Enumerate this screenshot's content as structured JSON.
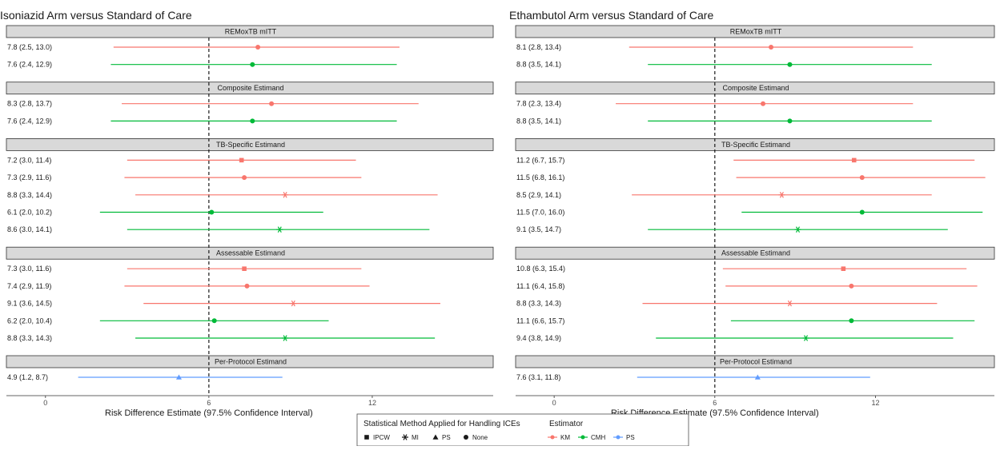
{
  "chart_data": {
    "type": "forest",
    "xlabel": "Risk Difference Estimate (97.5% Confidence Interval)",
    "x_ticks": [
      0,
      6,
      12
    ],
    "reference_line": 6,
    "colors": {
      "KM": "#f8766d",
      "CMH": "#00ba38",
      "PS": "#619cff"
    },
    "legend": {
      "placement": "bottom",
      "method_title": "Statistical Method Applied for Handling ICEs",
      "methods": [
        {
          "name": "IPCW",
          "shape": "square"
        },
        {
          "name": "MI",
          "shape": "asterisk"
        },
        {
          "name": "PS",
          "shape": "triangle"
        },
        {
          "name": "None",
          "shape": "circle"
        }
      ],
      "estimator_title": "Estimator",
      "estimators": [
        "KM",
        "CMH",
        "PS"
      ]
    },
    "panels": [
      {
        "title": "Isoniazid Arm versus Standard of Care",
        "xlim": [
          -1.2,
          16.5
        ],
        "groups": [
          {
            "label": "REMoxTB mITT",
            "rows": [
              {
                "text": "7.8 (2.5, 13.0)",
                "est": 7.8,
                "lo": 2.5,
                "hi": 13.0,
                "estimator": "KM",
                "method": "None"
              },
              {
                "text": "7.6 (2.4, 12.9)",
                "est": 7.6,
                "lo": 2.4,
                "hi": 12.9,
                "estimator": "CMH",
                "method": "None"
              }
            ]
          },
          {
            "label": "Composite Estimand",
            "rows": [
              {
                "text": "8.3 (2.8, 13.7)",
                "est": 8.3,
                "lo": 2.8,
                "hi": 13.7,
                "estimator": "KM",
                "method": "None"
              },
              {
                "text": "7.6 (2.4, 12.9)",
                "est": 7.6,
                "lo": 2.4,
                "hi": 12.9,
                "estimator": "CMH",
                "method": "None"
              }
            ]
          },
          {
            "label": "TB-Specific Estimand",
            "rows": [
              {
                "text": "7.2 (3.0, 11.4)",
                "est": 7.2,
                "lo": 3.0,
                "hi": 11.4,
                "estimator": "KM",
                "method": "IPCW"
              },
              {
                "text": "7.3 (2.9, 11.6)",
                "est": 7.3,
                "lo": 2.9,
                "hi": 11.6,
                "estimator": "KM",
                "method": "None"
              },
              {
                "text": "8.8 (3.3, 14.4)",
                "est": 8.8,
                "lo": 3.3,
                "hi": 14.4,
                "estimator": "KM",
                "method": "MI"
              },
              {
                "text": "6.1 (2.0, 10.2)",
                "est": 6.1,
                "lo": 2.0,
                "hi": 10.2,
                "estimator": "CMH",
                "method": "None"
              },
              {
                "text": "8.6 (3.0, 14.1)",
                "est": 8.6,
                "lo": 3.0,
                "hi": 14.1,
                "estimator": "CMH",
                "method": "MI"
              }
            ]
          },
          {
            "label": "Assessable Estimand",
            "rows": [
              {
                "text": "7.3 (3.0, 11.6)",
                "est": 7.3,
                "lo": 3.0,
                "hi": 11.6,
                "estimator": "KM",
                "method": "IPCW"
              },
              {
                "text": "7.4 (2.9, 11.9)",
                "est": 7.4,
                "lo": 2.9,
                "hi": 11.9,
                "estimator": "KM",
                "method": "None"
              },
              {
                "text": "9.1 (3.6, 14.5)",
                "est": 9.1,
                "lo": 3.6,
                "hi": 14.5,
                "estimator": "KM",
                "method": "MI"
              },
              {
                "text": "6.2 (2.0, 10.4)",
                "est": 6.2,
                "lo": 2.0,
                "hi": 10.4,
                "estimator": "CMH",
                "method": "None"
              },
              {
                "text": "8.8 (3.3, 14.3)",
                "est": 8.8,
                "lo": 3.3,
                "hi": 14.3,
                "estimator": "CMH",
                "method": "MI"
              }
            ]
          },
          {
            "label": "Per-Protocol Estimand",
            "rows": [
              {
                "text": "4.9 (1.2, 8.7)",
                "est": 4.9,
                "lo": 1.2,
                "hi": 8.7,
                "estimator": "PS",
                "method": "PS"
              }
            ]
          }
        ]
      },
      {
        "title": "Ethambutol Arm versus Standard of Care",
        "xlim": [
          -1.2,
          16.5
        ],
        "groups": [
          {
            "label": "REMoxTB mITT",
            "rows": [
              {
                "text": "8.1 (2.8, 13.4)",
                "est": 8.1,
                "lo": 2.8,
                "hi": 13.4,
                "estimator": "KM",
                "method": "None"
              },
              {
                "text": "8.8 (3.5, 14.1)",
                "est": 8.8,
                "lo": 3.5,
                "hi": 14.1,
                "estimator": "CMH",
                "method": "None"
              }
            ]
          },
          {
            "label": "Composite Estimand",
            "rows": [
              {
                "text": "7.8 (2.3, 13.4)",
                "est": 7.8,
                "lo": 2.3,
                "hi": 13.4,
                "estimator": "KM",
                "method": "None"
              },
              {
                "text": "8.8 (3.5, 14.1)",
                "est": 8.8,
                "lo": 3.5,
                "hi": 14.1,
                "estimator": "CMH",
                "method": "None"
              }
            ]
          },
          {
            "label": "TB-Specific Estimand",
            "rows": [
              {
                "text": "11.2 (6.7, 15.7)",
                "est": 11.2,
                "lo": 6.7,
                "hi": 15.7,
                "estimator": "KM",
                "method": "IPCW"
              },
              {
                "text": "11.5 (6.8, 16.1)",
                "est": 11.5,
                "lo": 6.8,
                "hi": 16.1,
                "estimator": "KM",
                "method": "None"
              },
              {
                "text": "8.5 (2.9, 14.1)",
                "est": 8.5,
                "lo": 2.9,
                "hi": 14.1,
                "estimator": "KM",
                "method": "MI"
              },
              {
                "text": "11.5 (7.0, 16.0)",
                "est": 11.5,
                "lo": 7.0,
                "hi": 16.0,
                "estimator": "CMH",
                "method": "None"
              },
              {
                "text": "9.1 (3.5, 14.7)",
                "est": 9.1,
                "lo": 3.5,
                "hi": 14.7,
                "estimator": "CMH",
                "method": "MI"
              }
            ]
          },
          {
            "label": "Assessable Estimand",
            "rows": [
              {
                "text": "10.8 (6.3, 15.4)",
                "est": 10.8,
                "lo": 6.3,
                "hi": 15.4,
                "estimator": "KM",
                "method": "IPCW"
              },
              {
                "text": "11.1 (6.4, 15.8)",
                "est": 11.1,
                "lo": 6.4,
                "hi": 15.8,
                "estimator": "KM",
                "method": "None"
              },
              {
                "text": "8.8 (3.3, 14.3)",
                "est": 8.8,
                "lo": 3.3,
                "hi": 14.3,
                "estimator": "KM",
                "method": "MI"
              },
              {
                "text": "11.1 (6.6, 15.7)",
                "est": 11.1,
                "lo": 6.6,
                "hi": 15.7,
                "estimator": "CMH",
                "method": "None"
              },
              {
                "text": "9.4 (3.8, 14.9)",
                "est": 9.4,
                "lo": 3.8,
                "hi": 14.9,
                "estimator": "CMH",
                "method": "MI"
              }
            ]
          },
          {
            "label": "Per-Protocol Estimand",
            "rows": [
              {
                "text": "7.6 (3.1, 11.8)",
                "est": 7.6,
                "lo": 3.1,
                "hi": 11.8,
                "estimator": "PS",
                "method": "PS"
              }
            ]
          }
        ]
      }
    ]
  }
}
